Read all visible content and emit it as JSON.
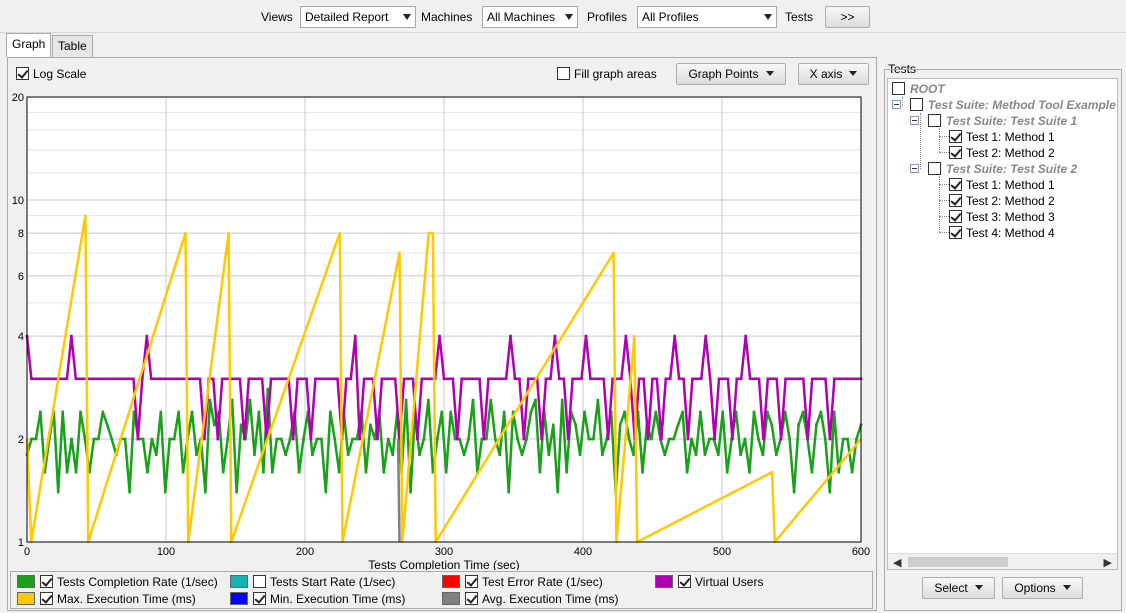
{
  "toolbar": {
    "views_label": "Views",
    "views_value": "Detailed Report",
    "machines_label": "Machines",
    "machines_value": "All Machines",
    "profiles_label": "Profiles",
    "profiles_value": "All Profiles",
    "tests_label": "Tests",
    "tests_button": ">>"
  },
  "tabs": [
    {
      "label": "Graph",
      "active": true
    },
    {
      "label": "Table",
      "active": false
    }
  ],
  "graph_controls": {
    "log_scale_label": "Log Scale",
    "log_scale_checked": true,
    "fill_label": "Fill graph areas",
    "fill_checked": false,
    "graph_points_label": "Graph Points",
    "x_axis_label": "X axis"
  },
  "chart_data": {
    "type": "line",
    "xlabel": "Tests Completion Time (sec)",
    "ylabel": "",
    "log_scale": true,
    "xlim": [
      0,
      600
    ],
    "ylim": [
      1,
      20
    ],
    "x_ticks": [
      "0",
      "100",
      "200",
      "300",
      "400",
      "500",
      "600"
    ],
    "y_ticks": [
      "1",
      "2",
      "4",
      "6",
      "8",
      "10",
      "20"
    ],
    "grid": true,
    "series": [
      {
        "name": "Tests Completion Rate (1/sec)",
        "color": "#1aa01a",
        "visible": true,
        "values": [
          1.8,
          2,
          2,
          2.4,
          1.6,
          2,
          2.4,
          1.4,
          2.4,
          1.6,
          2,
          1.6,
          2.4,
          2,
          1.6,
          2,
          2,
          2.4,
          2.2,
          2,
          1.8,
          2,
          2,
          1.4,
          2.4,
          2,
          2,
          1.6,
          2,
          1.8,
          2.4,
          1.4,
          2,
          2,
          2.4,
          1.6,
          2,
          2.4,
          1.8,
          2,
          1.4,
          2.6,
          2.2,
          2.4,
          1.6,
          2,
          2.6,
          1.4,
          2.2,
          2,
          2.6,
          1.8,
          2.4,
          1.6,
          2.8,
          1.6,
          2,
          2,
          1.8,
          2,
          2.4,
          1.6,
          2,
          2.4,
          1.8,
          2,
          2,
          1.4,
          2.4,
          2,
          1.6,
          2.4,
          1.8,
          2,
          2,
          2.4,
          1.6,
          2.2,
          2,
          2.4,
          1.6,
          2,
          1.8,
          2.4,
          1.6,
          2.6,
          1.4,
          2.4,
          1.8,
          2,
          2.6,
          1.6,
          2,
          2.4,
          1.6,
          2.4,
          2,
          2,
          1.8,
          2,
          2.6,
          1.6,
          2,
          2,
          2.6,
          2,
          1.8,
          2.4,
          1.4,
          2.4,
          2,
          1.8,
          2,
          2.4,
          2.6,
          1.6,
          2.4,
          1.8,
          2.2,
          1.4,
          2.6,
          1.6,
          2.4,
          2.2,
          1.8,
          2.4,
          2,
          2,
          2.6,
          1.8,
          2,
          2.4,
          1.4,
          2.2,
          2.4,
          2,
          1.8,
          2.4,
          1.6,
          2.2,
          2,
          2.4,
          2,
          1.8,
          2,
          2,
          2.2,
          2.4,
          1.6,
          2,
          1.8,
          2.4,
          1.8,
          2,
          2,
          1.8,
          2.4,
          1.6,
          2,
          2.4,
          1.8,
          2,
          1.6,
          2.4,
          2,
          1.8,
          2.4,
          2.2,
          1.8,
          2,
          2.4,
          2,
          1.4,
          2.2,
          2.4,
          2,
          1.6,
          2.2,
          2.4,
          2,
          1.4,
          2.4,
          1.6,
          2,
          2,
          1.6,
          2,
          2.2
        ]
      },
      {
        "name": "Tests Start Rate (1/sec)",
        "color": "#19b2b2",
        "visible": false
      },
      {
        "name": "Test Error Rate (1/sec)",
        "color": "#ff0000",
        "visible": true,
        "values": []
      },
      {
        "name": "Virtual Users",
        "color": "#b000b0",
        "visible": true,
        "values": [
          4,
          3,
          3,
          3,
          3,
          3,
          3,
          3,
          3,
          3,
          4,
          3,
          3,
          3,
          3,
          3,
          3,
          3,
          3,
          3,
          3,
          3,
          3,
          3,
          3,
          2,
          3,
          4,
          3,
          3,
          3,
          3,
          3,
          3,
          3,
          3,
          3,
          3,
          3,
          3,
          2,
          3,
          3,
          2,
          3,
          3,
          3,
          3,
          3,
          2,
          3,
          3,
          3,
          3,
          2,
          3,
          3,
          3,
          3,
          3,
          2,
          3,
          3,
          3,
          2,
          3,
          3,
          3,
          3,
          3,
          3,
          2,
          3,
          3,
          4,
          2,
          3,
          3,
          3,
          2,
          3,
          3,
          3,
          3,
          2,
          3,
          3,
          3,
          2,
          3,
          3,
          3,
          3,
          4,
          3,
          3,
          3,
          2,
          3,
          3,
          3,
          3,
          3,
          2,
          3,
          3,
          3,
          3,
          3,
          4,
          3,
          3,
          2,
          3,
          3,
          3,
          2,
          3,
          3,
          4,
          3,
          3,
          2,
          3,
          3,
          3,
          4,
          3,
          3,
          3,
          3,
          2,
          3,
          3,
          3,
          4,
          3,
          2,
          3,
          3,
          2,
          3,
          3,
          2,
          3,
          3,
          4,
          3,
          3,
          2,
          3,
          3,
          3,
          4,
          3,
          2,
          3,
          3,
          3,
          2,
          3,
          3,
          4,
          3,
          3,
          3,
          2,
          3,
          3,
          3,
          2,
          3,
          3,
          3,
          3,
          3,
          2,
          3,
          3,
          3,
          3,
          2,
          3,
          3,
          3,
          3,
          3,
          3,
          3
        ]
      },
      {
        "name": "Max. Execution Time (ms)",
        "color": "#ffc800",
        "visible": true,
        "spikes": [
          [
            0,
            2
          ],
          [
            3,
            1
          ],
          [
            42,
            9
          ],
          [
            44,
            1
          ],
          [
            114,
            8
          ],
          [
            116,
            1
          ],
          [
            145,
            8
          ],
          [
            147,
            1
          ],
          [
            225,
            8
          ],
          [
            227,
            1
          ],
          [
            268,
            7
          ],
          [
            270,
            1
          ],
          [
            289,
            8
          ],
          [
            292,
            8
          ],
          [
            294,
            1
          ],
          [
            422,
            7
          ],
          [
            424,
            1
          ],
          [
            437,
            4
          ],
          [
            439,
            1
          ],
          [
            536,
            1.6
          ],
          [
            538,
            1
          ],
          [
            600,
            2
          ]
        ]
      },
      {
        "name": "Min. Execution Time (ms)",
        "color": "#0000ff",
        "visible": true,
        "values": []
      },
      {
        "name": "Avg. Execution Time (ms)",
        "color": "#808080",
        "visible": true,
        "spikes": [
          [
            267,
            2
          ],
          [
            268,
            1
          ]
        ]
      }
    ]
  },
  "legend": [
    {
      "label": "Tests Completion Rate (1/sec)",
      "color": "#1aa01a",
      "checked": true
    },
    {
      "label": "Tests Start Rate (1/sec)",
      "color": "#19b2b2",
      "checked": false
    },
    {
      "label": "Test Error Rate (1/sec)",
      "color": "#ff0000",
      "checked": true
    },
    {
      "label": "Virtual Users",
      "color": "#b000b0",
      "checked": true
    },
    {
      "label": "Max. Execution Time (ms)",
      "color": "#ffc800",
      "checked": true
    },
    {
      "label": "Min. Execution Time (ms)",
      "color": "#0000ff",
      "checked": true
    },
    {
      "label": "Avg. Execution Time (ms)",
      "color": "#808080",
      "checked": true
    }
  ],
  "tests_panel": {
    "title": "Tests",
    "root_label": "ROOT",
    "suite_main": "Test Suite: Method Tool Example",
    "suite1": "Test Suite: Test Suite 1",
    "suite1_tests": [
      "Test 1: Method 1",
      "Test 2: Method 2"
    ],
    "suite2": "Test Suite: Test Suite 2",
    "suite2_tests": [
      "Test 1: Method 1",
      "Test 2: Method 2",
      "Test 3: Method 3",
      "Test 4: Method 4"
    ],
    "select_button": "Select",
    "options_button": "Options"
  }
}
